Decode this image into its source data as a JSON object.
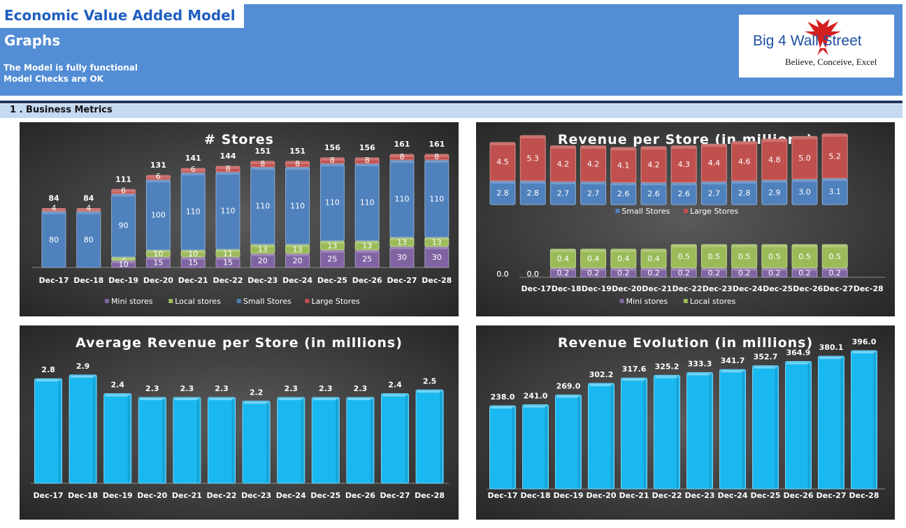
{
  "header": {
    "title": "Economic Value Added Model",
    "subtitle": "Graphs",
    "status_line1": "The Model is fully functional",
    "status_line2": "Model Checks are OK",
    "logo_text": "Big 4 Wall Street",
    "logo_tagline": "Believe, Conceive, Excel"
  },
  "section": {
    "label": "1 . Business Metrics"
  },
  "colors": {
    "header_blue": "#538dd5",
    "mini": "#8064a2",
    "local": "#9bbb59",
    "small": "#4f81bd",
    "large": "#c0504d",
    "revenue_bar": "#1ab8f0"
  },
  "chart_data": [
    {
      "type": "bar",
      "stacked": true,
      "title": "# Stores",
      "categories": [
        "Dec-17",
        "Dec-18",
        "Dec-19",
        "Dec-20",
        "Dec-21",
        "Dec-22",
        "Dec-23",
        "Dec-24",
        "Dec-25",
        "Dec-26",
        "Dec-27",
        "Dec-28"
      ],
      "series": [
        {
          "name": "Mini stores",
          "values": [
            0,
            0,
            10,
            15,
            15,
            15,
            20,
            20,
            25,
            25,
            30,
            30
          ]
        },
        {
          "name": "Local stores",
          "values": [
            0,
            0,
            5,
            10,
            10,
            11,
            13,
            13,
            13,
            13,
            13,
            13
          ]
        },
        {
          "name": "Small Stores",
          "values": [
            80,
            80,
            90,
            100,
            110,
            110,
            110,
            110,
            110,
            110,
            110,
            110
          ]
        },
        {
          "name": "Large Stores",
          "values": [
            4,
            4,
            6,
            6,
            6,
            8,
            8,
            8,
            8,
            8,
            8,
            8
          ]
        }
      ],
      "totals": [
        84,
        84,
        111,
        131,
        141,
        144,
        151,
        151,
        156,
        156,
        161,
        161
      ],
      "legend": "bottom"
    },
    {
      "type": "bar",
      "stacked": true,
      "title": "Revenue per Store (in millions)",
      "categories": [
        "Dec-17",
        "Dec-18",
        "Dec-19",
        "Dec-20",
        "Dec-21",
        "Dec-22",
        "Dec-23",
        "Dec-24",
        "Dec-25",
        "Dec-26",
        "Dec-27",
        "Dec-28"
      ],
      "upper_series": [
        {
          "name": "Small Stores",
          "values": [
            2.8,
            2.8,
            2.7,
            2.7,
            2.6,
            2.6,
            2.6,
            2.7,
            2.8,
            2.9,
            3.0,
            3.1
          ]
        },
        {
          "name": "Large Stores",
          "values": [
            4.5,
            5.3,
            4.2,
            4.2,
            4.1,
            4.2,
            4.3,
            4.4,
            4.6,
            4.8,
            5.0,
            5.2
          ]
        }
      ],
      "lower_series": [
        {
          "name": "Mini stores",
          "values": [
            0.0,
            0.0,
            0.2,
            0.2,
            0.2,
            0.2,
            0.2,
            0.2,
            0.2,
            0.2,
            0.2,
            0.2
          ]
        },
        {
          "name": "Local stores",
          "values": [
            0.0,
            0.0,
            0.4,
            0.4,
            0.4,
            0.4,
            0.5,
            0.5,
            0.5,
            0.5,
            0.5,
            0.5
          ]
        }
      ],
      "legend": "bottom"
    },
    {
      "type": "bar",
      "title": "Average Revenue per Store (in millions)",
      "categories": [
        "Dec-17",
        "Dec-18",
        "Dec-19",
        "Dec-20",
        "Dec-21",
        "Dec-22",
        "Dec-23",
        "Dec-24",
        "Dec-25",
        "Dec-26",
        "Dec-27",
        "Dec-28"
      ],
      "values": [
        2.8,
        2.9,
        2.4,
        2.3,
        2.3,
        2.3,
        2.2,
        2.3,
        2.3,
        2.3,
        2.4,
        2.5
      ]
    },
    {
      "type": "bar",
      "title": "Revenue Evolution (in millions)",
      "categories": [
        "Dec-17",
        "Dec-18",
        "Dec-19",
        "Dec-20",
        "Dec-21",
        "Dec-22",
        "Dec-23",
        "Dec-24",
        "Dec-25",
        "Dec-26",
        "Dec-27",
        "Dec-28"
      ],
      "values": [
        238.0,
        241.0,
        269.0,
        302.2,
        317.6,
        325.2,
        333.3,
        341.7,
        352.7,
        364.9,
        380.1,
        396.0
      ]
    }
  ]
}
